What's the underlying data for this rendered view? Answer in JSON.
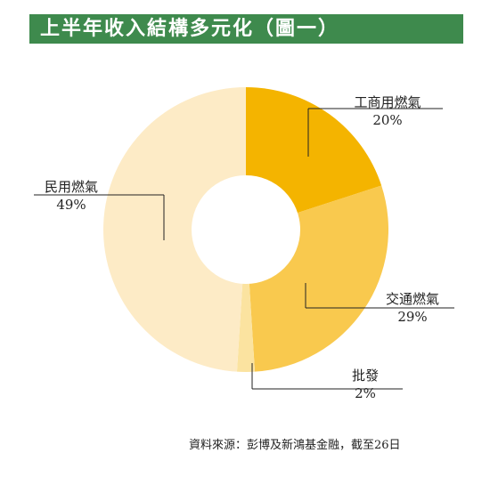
{
  "title": "上半年收入結構多元化（圖一）",
  "source_note": "資料來源：彭博及新鴻基金融，截至26日",
  "chart_data": {
    "type": "pie",
    "title": "上半年收入結構多元化（圖一）",
    "donut": true,
    "slices": [
      {
        "label": "工商用燃氣",
        "value": 20,
        "value_label": "20%",
        "color": "#f4b400"
      },
      {
        "label": "交通燃氣",
        "value": 29,
        "value_label": "29%",
        "color": "#f9c94e"
      },
      {
        "label": "批發",
        "value": 2,
        "value_label": "2%",
        "color": "#fbe3a0"
      },
      {
        "label": "民用燃氣",
        "value": 49,
        "value_label": "49%",
        "color": "#fdebc6"
      }
    ]
  }
}
